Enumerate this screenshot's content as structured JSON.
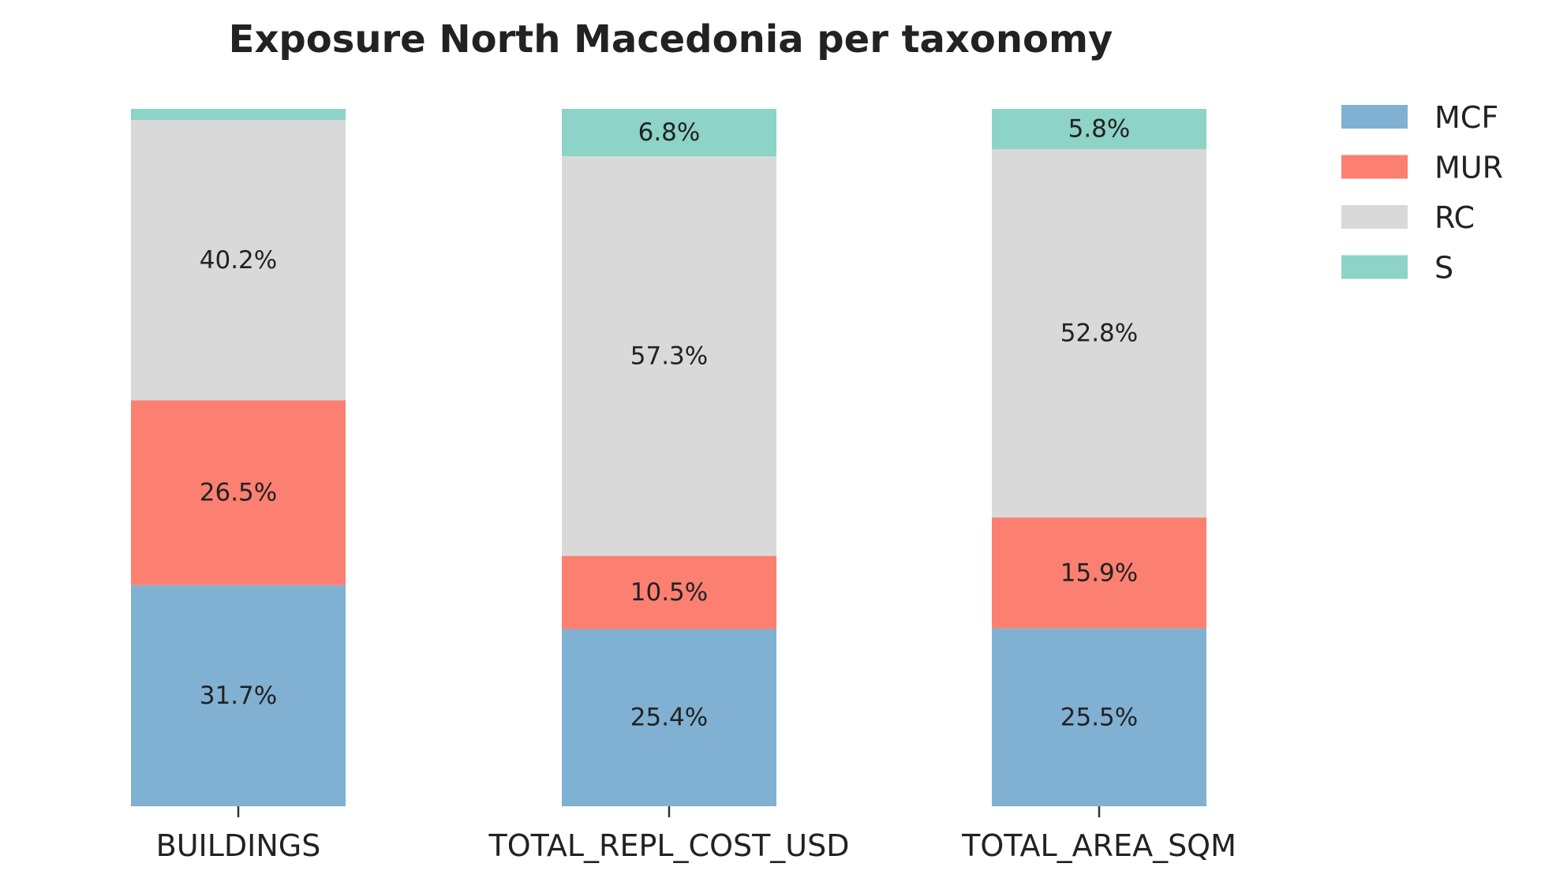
{
  "chart_data": {
    "type": "bar",
    "stacked": true,
    "normalized": true,
    "title": "Exposure North Macedonia per taxonomy",
    "xlabel": "",
    "ylabel": "",
    "ylim": [
      0,
      100
    ],
    "grid": false,
    "legend_position": "top-right",
    "categories": [
      "BUILDINGS",
      "TOTAL_REPL_COST_USD",
      "TOTAL_AREA_SQM"
    ],
    "series": [
      {
        "name": "MCF",
        "color": "#80b1d3",
        "values": [
          31.7,
          25.4,
          25.5
        ],
        "labels": [
          "31.7%",
          "25.4%",
          "25.5%"
        ]
      },
      {
        "name": "MUR",
        "color": "#fb8072",
        "values": [
          26.5,
          10.5,
          15.9
        ],
        "labels": [
          "26.5%",
          "10.5%",
          "15.9%"
        ]
      },
      {
        "name": "RC",
        "color": "#d9d9d9",
        "values": [
          40.2,
          57.3,
          52.8
        ],
        "labels": [
          "40.2%",
          "57.3%",
          "52.8%"
        ]
      },
      {
        "name": "S",
        "color": "#8dd3c7",
        "values": [
          1.6,
          6.8,
          5.8
        ],
        "labels": [
          "",
          "6.8%",
          "5.8%"
        ]
      }
    ]
  }
}
